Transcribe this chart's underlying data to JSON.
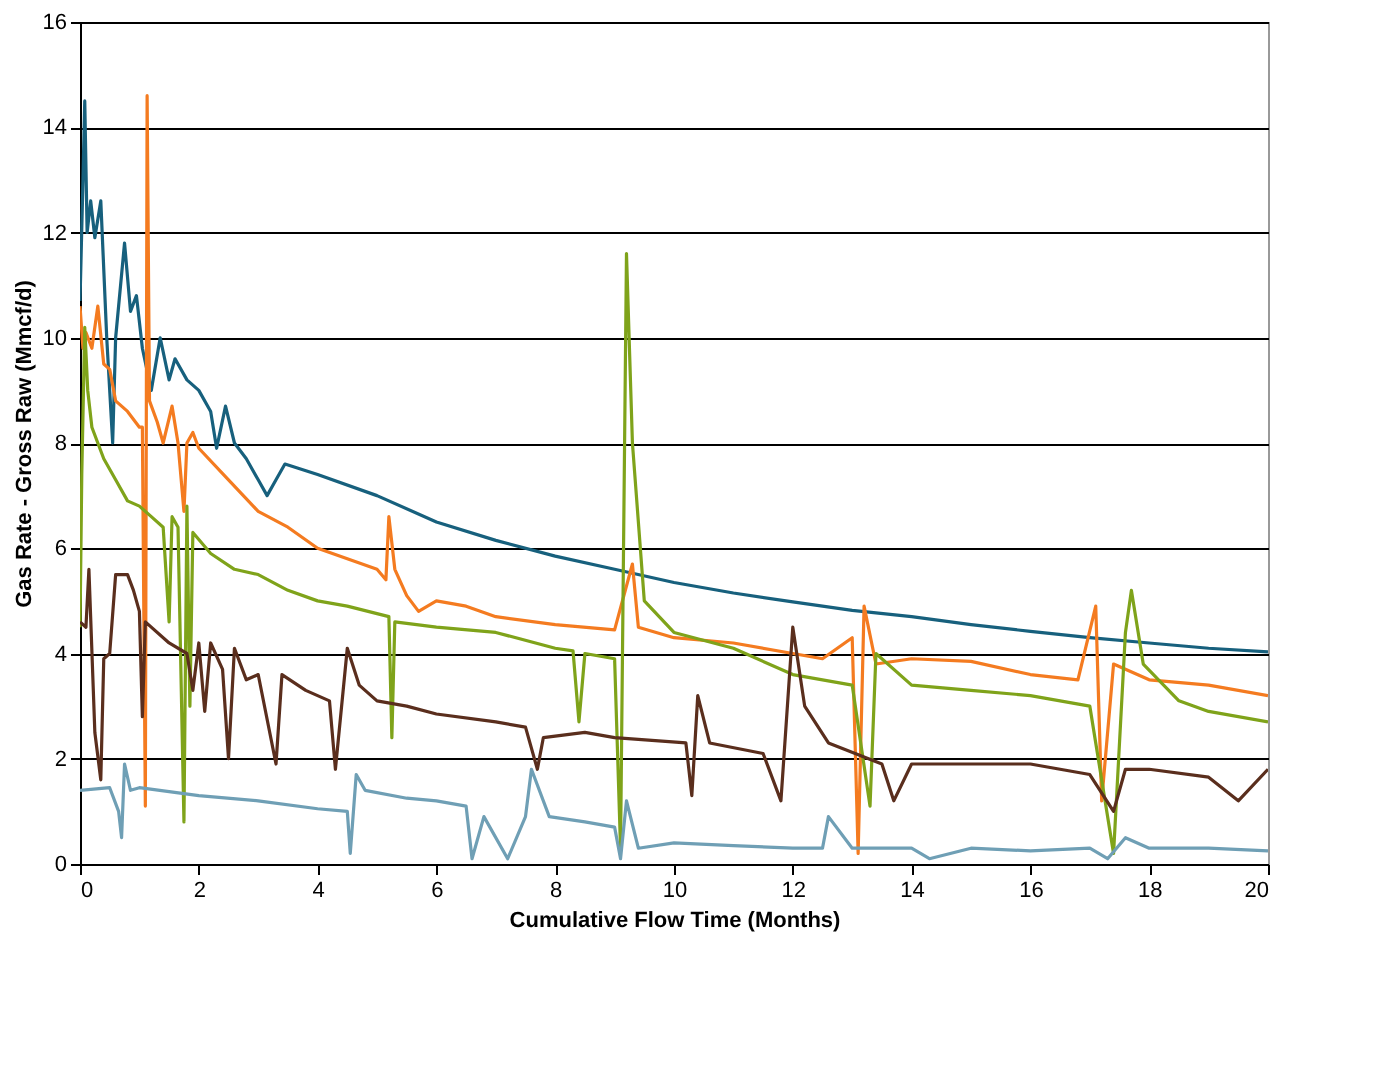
{
  "chart_data": {
    "type": "line",
    "xlabel": "Cumulative Flow Time (Months)",
    "ylabel": "Gas Rate - Gross Raw (Mmcf/d)",
    "xlim": [
      0,
      20
    ],
    "xticks": [
      0,
      2,
      4,
      6,
      8,
      10,
      12,
      14,
      16,
      18,
      20
    ],
    "ylim": [
      0,
      16
    ],
    "yticks": [
      0,
      2,
      4,
      6,
      8,
      10,
      12,
      14,
      16
    ],
    "grid": "y",
    "legend": false,
    "marker": "none",
    "line_style": "solid",
    "series": [
      {
        "color": "#17607d",
        "x": [
          0,
          0.05,
          0.08,
          0.12,
          0.18,
          0.25,
          0.35,
          0.45,
          0.55,
          0.6,
          0.75,
          0.85,
          0.95,
          1.05,
          1.2,
          1.35,
          1.5,
          1.6,
          1.8,
          2.0,
          2.2,
          2.3,
          2.45,
          2.6,
          2.8,
          3.0,
          3.15,
          3.3,
          3.45,
          4,
          5,
          6,
          7,
          8,
          9,
          10,
          11,
          12,
          13,
          14,
          15,
          16,
          17,
          18,
          19,
          20
        ],
        "values": [
          10.7,
          13,
          14.5,
          12,
          12.6,
          11.9,
          12.6,
          10,
          8,
          10,
          11.8,
          10.5,
          10.8,
          9.8,
          9,
          10,
          9.2,
          9.6,
          9.2,
          9.0,
          8.6,
          7.9,
          8.7,
          8.0,
          7.7,
          7.3,
          7.0,
          7.3,
          7.6,
          7.4,
          7.0,
          6.5,
          6.15,
          5.85,
          5.6,
          5.35,
          5.15,
          4.98,
          4.82,
          4.7,
          4.55,
          4.42,
          4.3,
          4.2,
          4.1,
          4.03
        ]
      },
      {
        "color": "#f47b20",
        "x": [
          0,
          0.05,
          0.1,
          0.2,
          0.3,
          0.4,
          0.5,
          0.6,
          0.8,
          1.0,
          1.05,
          1.1,
          1.13,
          1.17,
          1.3,
          1.4,
          1.55,
          1.65,
          1.75,
          1.8,
          1.9,
          2.0,
          2.5,
          3.0,
          3.5,
          4.0,
          5.0,
          5.15,
          5.2,
          5.3,
          5.5,
          5.7,
          6,
          6.5,
          7,
          8,
          9,
          9.3,
          9.4,
          10,
          11,
          12,
          12.5,
          13,
          13.1,
          13.2,
          13.4,
          14,
          15,
          16,
          16.8,
          17.1,
          17.2,
          17.4,
          18,
          19,
          20
        ],
        "values": [
          10.6,
          9.8,
          10.1,
          9.8,
          10.6,
          9.5,
          9.4,
          8.8,
          8.6,
          8.3,
          8.3,
          1.1,
          14.6,
          8.8,
          8.4,
          8.0,
          8.7,
          8.0,
          6.7,
          8.0,
          8.2,
          7.9,
          7.3,
          6.7,
          6.4,
          6.0,
          5.6,
          5.4,
          6.6,
          5.6,
          5.1,
          4.8,
          5.0,
          4.9,
          4.7,
          4.55,
          4.45,
          5.7,
          4.5,
          4.3,
          4.2,
          4.0,
          3.9,
          4.3,
          0.2,
          4.9,
          3.8,
          3.9,
          3.85,
          3.6,
          3.5,
          4.9,
          1.2,
          3.8,
          3.5,
          3.4,
          3.2
        ]
      },
      {
        "color": "#7fa31a",
        "x": [
          0,
          0.03,
          0.08,
          0.13,
          0.2,
          0.4,
          0.6,
          0.8,
          1.0,
          1.2,
          1.4,
          1.5,
          1.55,
          1.65,
          1.75,
          1.8,
          1.85,
          1.9,
          2.2,
          2.6,
          3,
          3.5,
          4,
          4.5,
          5.2,
          5.25,
          5.3,
          6,
          7,
          8,
          8.3,
          8.4,
          8.5,
          9.0,
          9.1,
          9.2,
          9.3,
          9.5,
          10,
          11,
          12,
          13,
          13.3,
          13.4,
          14,
          15,
          16,
          17,
          17.4,
          17.6,
          17.7,
          17.9,
          18.5,
          19,
          20
        ],
        "values": [
          4.5,
          7.4,
          10.2,
          9.0,
          8.3,
          7.7,
          7.3,
          6.9,
          6.8,
          6.6,
          6.4,
          4.6,
          6.6,
          6.4,
          0.8,
          6.8,
          3.0,
          6.3,
          5.9,
          5.6,
          5.5,
          5.2,
          5.0,
          4.9,
          4.7,
          2.4,
          4.6,
          4.5,
          4.4,
          4.1,
          4.05,
          2.7,
          4.0,
          3.9,
          0.3,
          11.6,
          8.0,
          5.0,
          4.4,
          4.1,
          3.6,
          3.4,
          1.1,
          4.0,
          3.4,
          3.3,
          3.2,
          3.0,
          0.2,
          4.4,
          5.2,
          3.8,
          3.1,
          2.9,
          2.7
        ]
      },
      {
        "color": "#5a2e1d",
        "x": [
          0,
          0.1,
          0.15,
          0.25,
          0.35,
          0.4,
          0.5,
          0.6,
          0.8,
          0.9,
          1.0,
          1.05,
          1.1,
          1.5,
          1.8,
          1.9,
          2.0,
          2.1,
          2.2,
          2.4,
          2.5,
          2.6,
          2.8,
          3,
          3.3,
          3.4,
          3.8,
          4.2,
          4.3,
          4.5,
          4.7,
          5,
          5.5,
          6,
          7,
          7.5,
          7.7,
          7.8,
          8.5,
          9,
          10.2,
          10.3,
          10.4,
          10.6,
          11.5,
          11.8,
          12.0,
          12.2,
          12.6,
          13.5,
          13.7,
          14,
          15,
          16,
          17,
          17.4,
          17.6,
          18,
          19,
          19.5,
          20
        ],
        "values": [
          4.6,
          4.5,
          5.6,
          2.5,
          1.6,
          3.9,
          4.0,
          5.5,
          5.5,
          5.2,
          4.8,
          2.8,
          4.6,
          4.2,
          4.0,
          3.3,
          4.2,
          2.9,
          4.2,
          3.7,
          2.0,
          4.1,
          3.5,
          3.6,
          1.9,
          3.6,
          3.3,
          3.1,
          1.8,
          4.1,
          3.4,
          3.1,
          3.0,
          2.85,
          2.7,
          2.6,
          1.8,
          2.4,
          2.5,
          2.4,
          2.3,
          1.3,
          3.2,
          2.3,
          2.1,
          1.2,
          4.5,
          3.0,
          2.3,
          1.9,
          1.2,
          1.9,
          1.9,
          1.9,
          1.7,
          1.0,
          1.8,
          1.8,
          1.65,
          1.2,
          1.8
        ]
      },
      {
        "color": "#6f9fb5",
        "x": [
          0,
          0.5,
          0.65,
          0.7,
          0.75,
          0.85,
          1,
          2,
          3,
          4,
          4.5,
          4.55,
          4.65,
          4.8,
          5.5,
          6,
          6.5,
          6.6,
          6.8,
          7.2,
          7.5,
          7.6,
          7.9,
          8.5,
          9.0,
          9.1,
          9.2,
          9.4,
          10,
          11,
          12,
          12.5,
          12.6,
          13,
          14,
          14.3,
          15,
          16,
          17,
          17.3,
          17.6,
          18,
          19,
          20
        ],
        "values": [
          1.4,
          1.45,
          1.0,
          0.5,
          1.9,
          1.4,
          1.45,
          1.3,
          1.2,
          1.05,
          1.0,
          0.2,
          1.7,
          1.4,
          1.25,
          1.2,
          1.1,
          0.1,
          0.9,
          0.1,
          0.9,
          1.8,
          0.9,
          0.8,
          0.7,
          0.1,
          1.2,
          0.3,
          0.4,
          0.35,
          0.3,
          0.3,
          0.9,
          0.3,
          0.3,
          0.1,
          0.3,
          0.25,
          0.3,
          0.1,
          0.5,
          0.3,
          0.3,
          0.25
        ]
      }
    ]
  }
}
